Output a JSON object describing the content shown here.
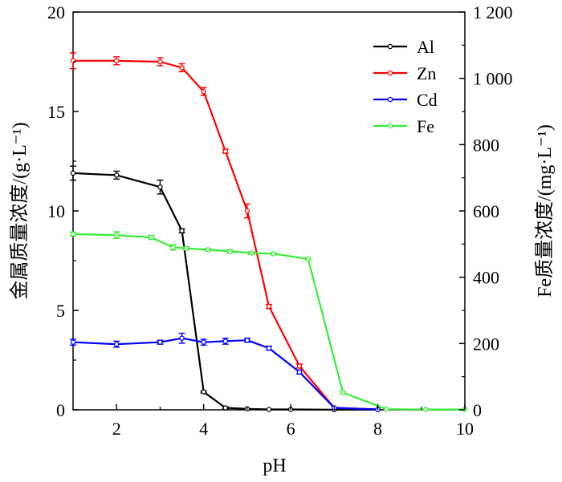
{
  "chart_data": {
    "type": "line",
    "xlabel": "pH",
    "ylabel_left": "金属质量浓度/(g·L⁻¹)",
    "ylabel_right": "Fe质量浓度/(mg·L⁻¹)",
    "xlim": [
      1,
      10
    ],
    "ylim_left": [
      0,
      20
    ],
    "ylim_right": [
      0,
      1200
    ],
    "x_ticks": [
      2,
      4,
      6,
      8,
      10
    ],
    "x_tick_labels": [
      "2",
      "4",
      "6",
      "8",
      "10"
    ],
    "y_left_ticks": [
      0,
      5,
      10,
      15,
      20
    ],
    "y_left_tick_labels": [
      "0",
      "5",
      "10",
      "15",
      "20"
    ],
    "y_right_ticks": [
      0,
      200,
      400,
      600,
      800,
      1000,
      1200
    ],
    "y_right_tick_labels": [
      "0",
      "200",
      "400",
      "600",
      "800",
      "1 000",
      "1 200"
    ],
    "grid": false,
    "legend_position": "top-right",
    "series": [
      {
        "name": "Al",
        "axis": "left",
        "color": "#000000",
        "x": [
          1,
          2,
          3,
          3.5,
          4,
          4.5,
          5,
          5.5,
          6,
          7,
          8
        ],
        "y": [
          11.9,
          11.8,
          11.2,
          9.0,
          0.9,
          0.1,
          0.05,
          0.02,
          0.02,
          0.01,
          0.01
        ],
        "err": [
          0.35,
          0.2,
          0.35,
          0.1,
          0.05,
          0.05,
          0,
          0,
          0,
          0,
          0
        ]
      },
      {
        "name": "Zn",
        "axis": "left",
        "color": "#ff0000",
        "x": [
          1,
          2,
          3,
          3.5,
          4,
          4.5,
          5,
          5.5,
          6.2,
          7,
          8
        ],
        "y": [
          17.55,
          17.55,
          17.5,
          17.2,
          16.0,
          13.0,
          10.0,
          5.2,
          2.2,
          0.1,
          0.02
        ],
        "err": [
          0.4,
          0.2,
          0.2,
          0.2,
          0.2,
          0.1,
          0.35,
          0.1,
          0.1,
          0,
          0
        ]
      },
      {
        "name": "Cd",
        "axis": "left",
        "color": "#0000ff",
        "x": [
          1,
          2,
          3,
          3.5,
          4,
          4.5,
          5,
          5.5,
          6.2,
          7,
          8
        ],
        "y": [
          3.4,
          3.3,
          3.4,
          3.6,
          3.4,
          3.45,
          3.5,
          3.1,
          1.9,
          0.1,
          0.02
        ],
        "err": [
          0.15,
          0.15,
          0.1,
          0.25,
          0.15,
          0.15,
          0.1,
          0.1,
          0.1,
          0,
          0
        ]
      },
      {
        "name": "Fe",
        "axis": "right",
        "color": "#33ee33",
        "x": [
          1,
          2,
          2.8,
          3.3,
          3.6,
          4.1,
          4.6,
          5.1,
          5.6,
          6.4,
          7.2,
          8.2,
          9.1,
          10
        ],
        "y": [
          530,
          527,
          520,
          490,
          487,
          483,
          478,
          473,
          471,
          455,
          52,
          2,
          1,
          1
        ],
        "err": [
          6,
          10,
          6,
          8,
          5,
          4,
          5,
          4,
          3,
          3,
          4,
          0,
          0,
          0
        ]
      }
    ]
  }
}
